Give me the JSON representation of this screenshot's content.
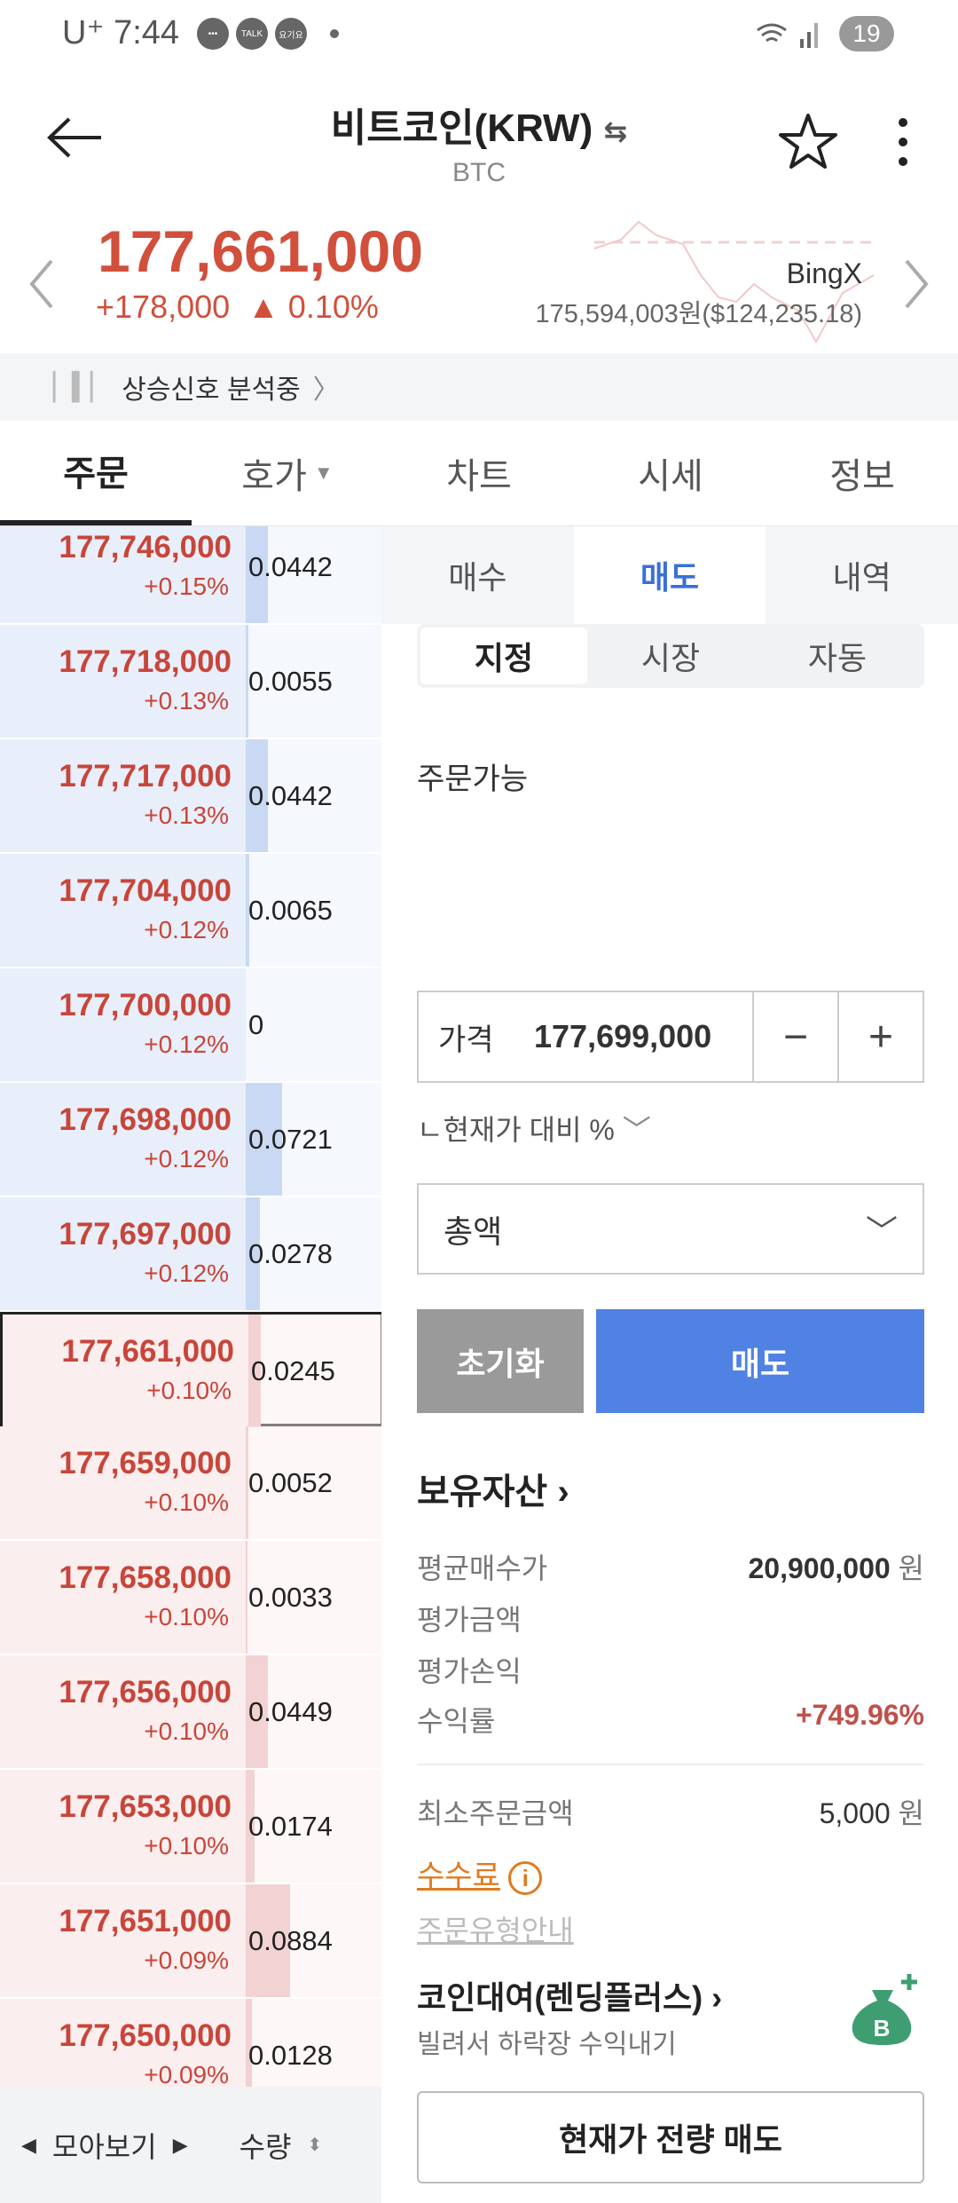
{
  "status_bar": {
    "carrier": "U⁺",
    "time": "7:44",
    "notif_icons": [
      "chat-bubble-icon",
      "talk-icon",
      "yogiyo-icon"
    ],
    "notif_texts": [
      "•••",
      "TALK",
      "요기요"
    ],
    "battery": "19"
  },
  "header": {
    "title": "비트코인(KRW)",
    "subtitle": "BTC"
  },
  "ticker": {
    "price": "177,661,000",
    "change": "+178,000",
    "change_pct": "▲ 0.10%",
    "exchange": "BingX",
    "exchange_price": "175,594,003원($124,235.18)"
  },
  "signal": {
    "text": "상승신호 분석중"
  },
  "tabs": [
    {
      "label": "주문",
      "active": true
    },
    {
      "label": "호가",
      "dropdown": true
    },
    {
      "label": "차트"
    },
    {
      "label": "시세"
    },
    {
      "label": "정보"
    }
  ],
  "orderbook": {
    "rows": [
      {
        "price": "177,746,000",
        "pct": "+0.15%",
        "qty": "0.0442",
        "side": "ask"
      },
      {
        "price": "177,718,000",
        "pct": "+0.13%",
        "qty": "0.0055",
        "side": "ask"
      },
      {
        "price": "177,717,000",
        "pct": "+0.13%",
        "qty": "0.0442",
        "side": "ask"
      },
      {
        "price": "177,704,000",
        "pct": "+0.12%",
        "qty": "0.0065",
        "side": "ask"
      },
      {
        "price": "177,700,000",
        "pct": "+0.12%",
        "qty": "0",
        "side": "ask"
      },
      {
        "price": "177,698,000",
        "pct": "+0.12%",
        "qty": "0.0721",
        "side": "ask"
      },
      {
        "price": "177,697,000",
        "pct": "+0.12%",
        "qty": "0.0278",
        "side": "ask"
      },
      {
        "price": "177,661,000",
        "pct": "+0.10%",
        "qty": "0.0245",
        "side": "bid",
        "current": true
      },
      {
        "price": "177,659,000",
        "pct": "+0.10%",
        "qty": "0.0052",
        "side": "bid"
      },
      {
        "price": "177,658,000",
        "pct": "+0.10%",
        "qty": "0.0033",
        "side": "bid"
      },
      {
        "price": "177,656,000",
        "pct": "+0.10%",
        "qty": "0.0449",
        "side": "bid"
      },
      {
        "price": "177,653,000",
        "pct": "+0.10%",
        "qty": "0.0174",
        "side": "bid"
      },
      {
        "price": "177,651,000",
        "pct": "+0.09%",
        "qty": "0.0884",
        "side": "bid"
      },
      {
        "price": "177,650,000",
        "pct": "+0.09%",
        "qty": "0.0128",
        "side": "bid"
      }
    ],
    "footer": {
      "group_label": "모아보기",
      "qty_label": "수량"
    }
  },
  "order": {
    "subtabs": [
      {
        "label": "매수"
      },
      {
        "label": "매도",
        "active": true
      },
      {
        "label": "내역"
      }
    ],
    "types": [
      {
        "label": "지정",
        "active": true
      },
      {
        "label": "시장"
      },
      {
        "label": "자동"
      }
    ],
    "available_label": "주문가능",
    "price_label": "가격",
    "price_value": "177,699,000",
    "minus": "−",
    "plus": "+",
    "pct_label": "ㄴ현재가 대비 %",
    "total_select": "총액",
    "reset_label": "초기화",
    "sell_label": "매도"
  },
  "holdings": {
    "title": "보유자산",
    "rows": [
      {
        "label": "평균매수가",
        "value": "20,900,000",
        "unit": "원"
      },
      {
        "label": "평가금액",
        "value": "",
        "unit": ""
      },
      {
        "label": "평가손익",
        "value": "",
        "unit": ""
      },
      {
        "label": "수익률",
        "value": "+749.96%",
        "unit": ""
      }
    ],
    "min_order_label": "최소주문금액",
    "min_order_value": "5,000",
    "min_order_unit": "원",
    "fee_label": "수수료",
    "order_type_guide": "주문유형안내",
    "lending_title": "코인대여(렌딩플러스)",
    "lending_sub": "빌려서 하락장 수익내기",
    "sell_all": "현재가 전량 매도"
  },
  "colors": {
    "up": "#d0503c",
    "accent": "#4f82e3",
    "ask_bg": "#e8effa",
    "bid_bg": "#fbeeee",
    "fee": "#e07a1e",
    "lending_icon": "#3e9e72"
  }
}
